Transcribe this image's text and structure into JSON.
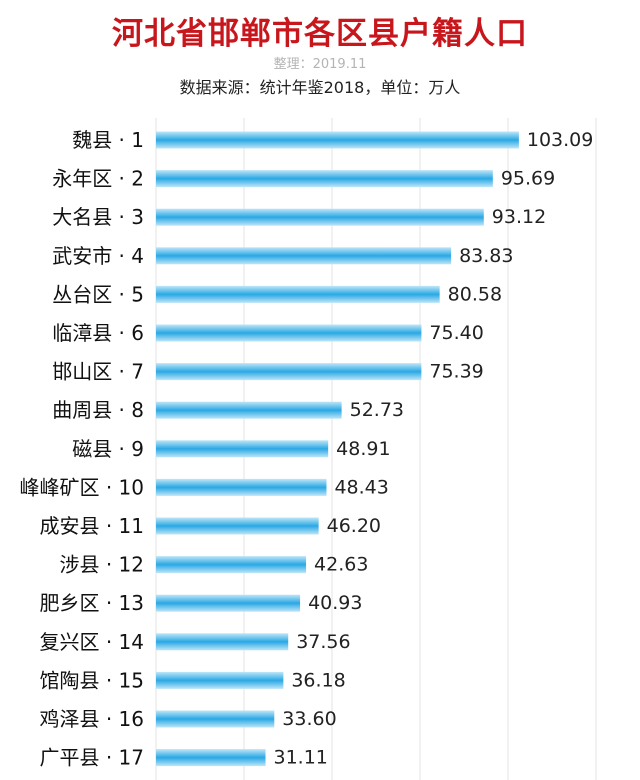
{
  "chart_data": {
    "type": "bar",
    "orientation": "horizontal",
    "title": "河北省邯郸市各区县户籍人口",
    "note": "整理：2019.11",
    "subtitle": "数据来源：统计年鉴2018，单位：万人",
    "categories": [
      "魏县 · 1",
      "永年区 · 2",
      "大名县 · 3",
      "武安市 · 4",
      "丛台区 · 5",
      "临漳县 · 6",
      "邯山区 · 7",
      "曲周县 · 8",
      "磁县 · 9",
      "峰峰矿区 · 10",
      "成安县 · 11",
      "涉县 · 12",
      "肥乡区 · 13",
      "复兴区 · 14",
      "馆陶县 · 15",
      "鸡泽县 · 16",
      "广平县 · 17"
    ],
    "values": [
      103.09,
      95.69,
      93.12,
      83.83,
      80.58,
      75.4,
      75.39,
      52.73,
      48.91,
      48.43,
      46.2,
      42.63,
      40.93,
      37.56,
      36.18,
      33.6,
      31.11
    ],
    "value_labels": [
      "103.09",
      "95.69",
      "93.12",
      "83.83",
      "80.58",
      "75.40",
      "75.39",
      "52.73",
      "48.91",
      "48.43",
      "46.20",
      "42.63",
      "40.93",
      "37.56",
      "36.18",
      "33.60",
      "31.11"
    ],
    "xlim": [
      0,
      125
    ],
    "grid": true,
    "colors": {
      "bar_mid": "#2aa8e4",
      "bar_edge": "#bfe6f8",
      "title": "#c8161d",
      "grid": "#e3e3e3"
    }
  }
}
